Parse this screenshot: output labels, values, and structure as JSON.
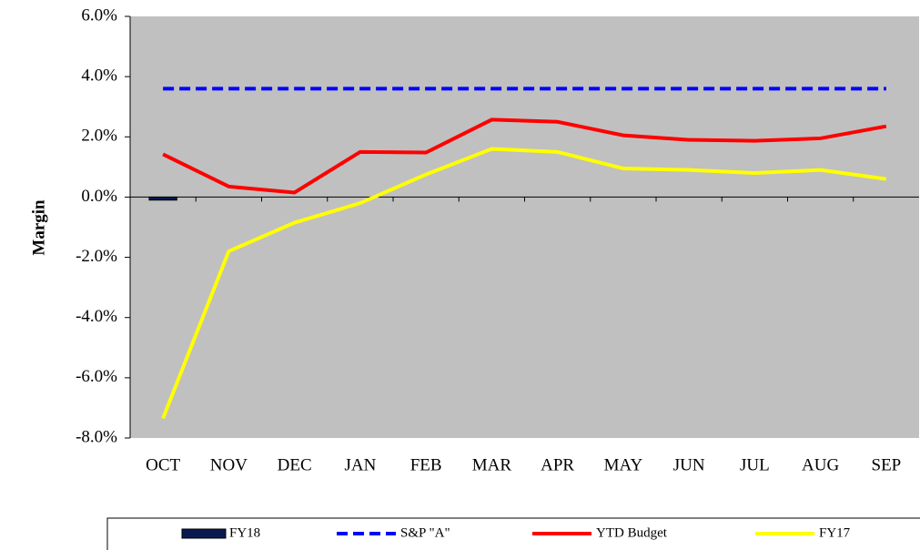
{
  "chart_data": {
    "type": "combo",
    "y_label": "Margin",
    "categories": [
      "OCT",
      "NOV",
      "DEC",
      "JAN",
      "FEB",
      "MAR",
      "APR",
      "MAY",
      "JUN",
      "JUL",
      "AUG",
      "SEP"
    ],
    "series": [
      {
        "name": "FY18",
        "type": "bar",
        "color": "#0a1a50",
        "values": [
          -0.1,
          null,
          null,
          null,
          null,
          null,
          null,
          null,
          null,
          null,
          null,
          null
        ]
      },
      {
        "name": "S&P \"A\"",
        "type": "line",
        "dash": true,
        "color": "#0000ff",
        "values": [
          3.6,
          3.6,
          3.6,
          3.6,
          3.6,
          3.6,
          3.6,
          3.6,
          3.6,
          3.6,
          3.6,
          3.6
        ]
      },
      {
        "name": "YTD Budget",
        "type": "line",
        "color": "#ff0000",
        "values": [
          1.42,
          0.35,
          0.15,
          1.5,
          1.48,
          2.57,
          2.5,
          2.05,
          1.9,
          1.87,
          1.95,
          2.35
        ]
      },
      {
        "name": "FY17",
        "type": "line",
        "color": "#ffff00",
        "values": [
          -7.35,
          -1.8,
          -0.85,
          -0.2,
          0.75,
          1.6,
          1.5,
          0.95,
          0.9,
          0.8,
          0.9,
          0.6
        ]
      }
    ],
    "ylim": [
      -8,
      6
    ],
    "yticks": [
      {
        "value": -8,
        "label": "-8.0%"
      },
      {
        "value": -6,
        "label": "-6.0%"
      },
      {
        "value": -4,
        "label": "-4.0%"
      },
      {
        "value": -2,
        "label": "-2.0%"
      },
      {
        "value": 0,
        "label": "0.0%"
      },
      {
        "value": 2,
        "label": "2.0%"
      },
      {
        "value": 4,
        "label": "4.0%"
      },
      {
        "value": 6,
        "label": "6.0%"
      }
    ],
    "legend": "bottom"
  }
}
